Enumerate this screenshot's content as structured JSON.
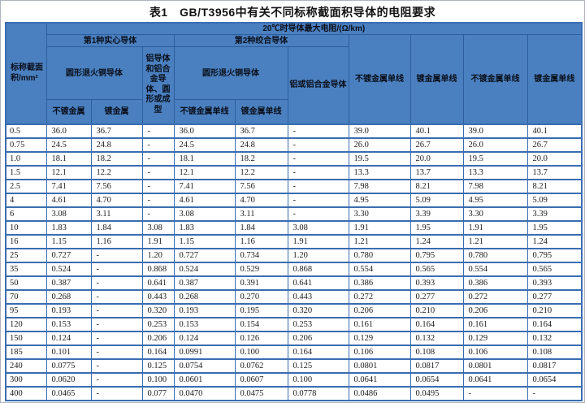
{
  "title": "表1　GB/T3956中有关不同标称截面积导体的电阻要求",
  "table": {
    "top_header": "20℃时导体最大电阻/(Ω/km)",
    "col1_header": "标称截面积/mm²",
    "group1": "第1种实心导体",
    "group2": "第2种绞合导体",
    "g1_copper": "圆形退火铜导体",
    "g1_aluminum": "铝导体和铝合金导体、圆形或成型",
    "g2_copper": "圆形退火铜导体",
    "g2_aluminum": "铝或铝合金导体",
    "g1_leaf_unplated": "不镀金属",
    "g1_leaf_plated": "镀金属",
    "g2_leaf_unplated": "不镀金属单线",
    "g2_leaf_plated": "镀金属单线",
    "col8_header": "不镀金属单线",
    "col9_header": "镀金属单线",
    "col10_header": "不镀金属单线",
    "col11_header": "镀金属单线",
    "rows": [
      [
        "0.5",
        "36.0",
        "36.7",
        "-",
        "36.0",
        "36.7",
        "-",
        "39.0",
        "40.1",
        "39.0",
        "40.1"
      ],
      [
        "0.75",
        "24.5",
        "24.8",
        "-",
        "24.5",
        "24.8",
        "-",
        "26.0",
        "26.7",
        "26.0",
        "26.7"
      ],
      [
        "1.0",
        "18.1",
        "18.2",
        "-",
        "18.1",
        "18.2",
        "-",
        "19.5",
        "20.0",
        "19.5",
        "20.0"
      ],
      [
        "1.5",
        "12.1",
        "12.2",
        "-",
        "12.1",
        "12.2",
        "-",
        "13.3",
        "13.7",
        "13.3",
        "13.7"
      ],
      [
        "2.5",
        "7.41",
        "7.56",
        "-",
        "7.41",
        "7.56",
        "-",
        "7.98",
        "8.21",
        "7.98",
        "8.21"
      ],
      [
        "4",
        "4.61",
        "4.70",
        "-",
        "4.61",
        "4.70",
        "-",
        "4.95",
        "5.09",
        "4.95",
        "5.09"
      ],
      [
        "6",
        "3.08",
        "3.11",
        "-",
        "3.08",
        "3.11",
        "-",
        "3.30",
        "3.39",
        "3.30",
        "3.39"
      ],
      [
        "10",
        "1.83",
        "1.84",
        "3.08",
        "1.83",
        "1.84",
        "3.08",
        "1.91",
        "1.95",
        "1.91",
        "1.95"
      ],
      [
        "16",
        "1.15",
        "1.16",
        "1.91",
        "1.15",
        "1.16",
        "1.91",
        "1.21",
        "1.24",
        "1.21",
        "1.24"
      ],
      [
        "25",
        "0.727",
        "-",
        "1.20",
        "0.727",
        "0.734",
        "1.20",
        "0.780",
        "0.795",
        "0.780",
        "0.795"
      ],
      [
        "35",
        "0.524",
        "-",
        "0.868",
        "0.524",
        "0.529",
        "0.868",
        "0.554",
        "0.565",
        "0.554",
        "0.565"
      ],
      [
        "50",
        "0.387",
        "-",
        "0.641",
        "0.387",
        "0.391",
        "0.641",
        "0.386",
        "0.393",
        "0.386",
        "0.393"
      ],
      [
        "70",
        "0.268",
        "-",
        "0.443",
        "0.268",
        "0.270",
        "0.443",
        "0.272",
        "0.277",
        "0.272",
        "0.277"
      ],
      [
        "95",
        "0.193",
        "-",
        "0.320",
        "0.193",
        "0.195",
        "0.320",
        "0.206",
        "0.210",
        "0.206",
        "0.210"
      ],
      [
        "120",
        "0.153",
        "-",
        "0.253",
        "0.153",
        "0.154",
        "0.253",
        "0.161",
        "0.164",
        "0.161",
        "0.164"
      ],
      [
        "150",
        "0.124",
        "-",
        "0.206",
        "0.124",
        "0.126",
        "0.206",
        "0.129",
        "0.132",
        "0.129",
        "0.132"
      ],
      [
        "185",
        "0.101",
        "-",
        "0.164",
        "0.0991",
        "0.100",
        "0.164",
        "0.106",
        "0.108",
        "0.106",
        "0.108"
      ],
      [
        "240",
        "0.0775",
        "-",
        "0.125",
        "0.0754",
        "0.0762",
        "0.125",
        "0.0801",
        "0.0817",
        "0.0801",
        "0.0817"
      ],
      [
        "300",
        "0.0620",
        "-",
        "0.100",
        "0.0601",
        "0.0607",
        "0.100",
        "0.0641",
        "0.0654",
        "0.0641",
        "0.0654"
      ],
      [
        "400",
        "0.0465",
        "-",
        "0.077",
        "0.0470",
        "0.0475",
        "0.0778",
        "0.0486",
        "0.0495",
        "-",
        "-"
      ]
    ],
    "colors": {
      "header_fill": "#4a80c0",
      "border_blue": "#3a6db1",
      "header_border": "#2d5d9d"
    }
  }
}
